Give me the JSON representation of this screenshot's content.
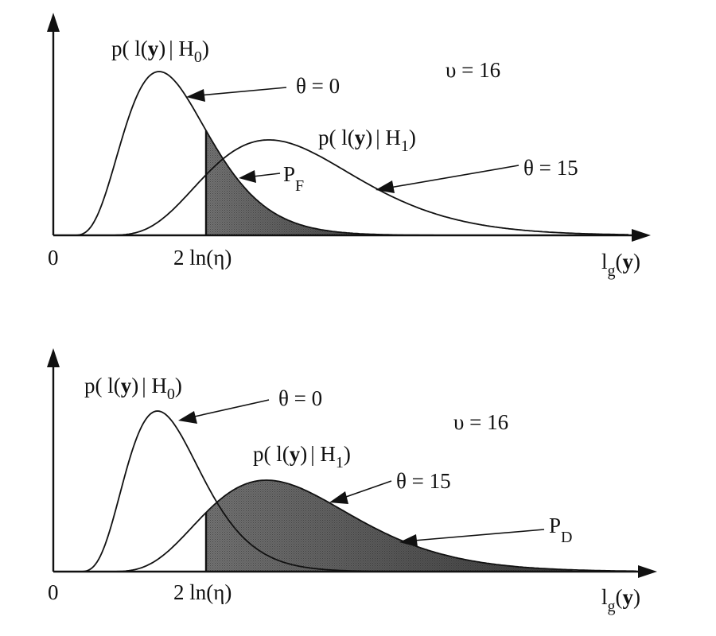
{
  "panels": [
    {
      "id": "top",
      "shade": "false_alarm",
      "h0_label": {
        "pre": "p( l(",
        "bold": "y",
        "mid": ")",
        "bar": "|",
        "H": " H",
        "sub": "0",
        "post": ")"
      },
      "h1_label": {
        "pre": "p( l(",
        "bold": "y",
        "mid": ")",
        "bar": "|",
        "H": " H",
        "sub": "1",
        "post": ")"
      },
      "theta0_label": "θ = 0",
      "theta1_label": "θ = 15",
      "nu_label": "υ = 16",
      "area_label": {
        "main": "P",
        "sub": "F"
      },
      "origin_label": "0",
      "threshold_label": "2 ln(η)",
      "x_axis_label": {
        "main": "l",
        "sub": "g",
        "pre": "(",
        "bold": "y",
        "post": ")"
      }
    },
    {
      "id": "bottom",
      "shade": "detection",
      "h0_label": {
        "pre": "p( l(",
        "bold": "y",
        "mid": ")",
        "bar": "|",
        "H": " H",
        "sub": "0",
        "post": ")"
      },
      "h1_label": {
        "pre": "p( l(",
        "bold": "y",
        "mid": ")",
        "bar": "|",
        "H": " H",
        "sub": "1",
        "post": ")"
      },
      "theta0_label": "θ = 0",
      "theta1_label": "θ = 15",
      "nu_label": "υ = 16",
      "area_label": {
        "main": "P",
        "sub": "D"
      },
      "origin_label": "0",
      "threshold_label": "2 ln(η)",
      "x_axis_label": {
        "main": "l",
        "sub": "g",
        "pre": "(",
        "bold": "y",
        "post": ")"
      }
    }
  ],
  "colors": {
    "ink": "#111111",
    "shade": "#8a8a8a",
    "background": "#ffffff"
  }
}
